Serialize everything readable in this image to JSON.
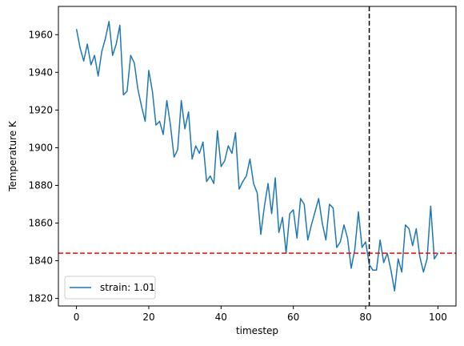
{
  "chart_data": {
    "type": "line",
    "xlabel": "timestep",
    "ylabel": "Temperature K",
    "xlim": [
      -5,
      105
    ],
    "ylim": [
      1816,
      1975
    ],
    "xticks": [
      0,
      20,
      40,
      60,
      80,
      100
    ],
    "yticks": [
      1820,
      1840,
      1860,
      1880,
      1900,
      1920,
      1940,
      1960
    ],
    "grid": false,
    "legend_position": "lower-left",
    "series": [
      {
        "name": "strain: 1.01",
        "color": "#1f77b4",
        "x": [
          0,
          1,
          2,
          3,
          4,
          5,
          6,
          7,
          8,
          9,
          10,
          11,
          12,
          13,
          14,
          15,
          16,
          17,
          18,
          19,
          20,
          21,
          22,
          23,
          24,
          25,
          26,
          27,
          28,
          29,
          30,
          31,
          32,
          33,
          34,
          35,
          36,
          37,
          38,
          39,
          40,
          41,
          42,
          43,
          44,
          45,
          46,
          47,
          48,
          49,
          50,
          51,
          52,
          53,
          54,
          55,
          56,
          57,
          58,
          59,
          60,
          61,
          62,
          63,
          64,
          65,
          66,
          67,
          68,
          69,
          70,
          71,
          72,
          73,
          74,
          75,
          76,
          77,
          78,
          79,
          80,
          81,
          82,
          83,
          84,
          85,
          86,
          87,
          88,
          89,
          90,
          91,
          92,
          93,
          94,
          95,
          96,
          97,
          98,
          99,
          100
        ],
        "y": [
          1963,
          1953,
          1946,
          1955,
          1944,
          1949,
          1938,
          1951,
          1958,
          1967,
          1949,
          1955,
          1965,
          1928,
          1930,
          1949,
          1945,
          1931,
          1922,
          1914,
          1941,
          1930,
          1912,
          1914,
          1907,
          1925,
          1912,
          1895,
          1899,
          1925,
          1910,
          1919,
          1894,
          1901,
          1897,
          1903,
          1882,
          1885,
          1881,
          1909,
          1890,
          1893,
          1901,
          1897,
          1908,
          1878,
          1882,
          1885,
          1894,
          1881,
          1876,
          1854,
          1869,
          1881,
          1865,
          1884,
          1855,
          1863,
          1844,
          1865,
          1867,
          1852,
          1873,
          1870,
          1851,
          1859,
          1866,
          1873,
          1860,
          1851,
          1870,
          1868,
          1847,
          1850,
          1859,
          1852,
          1836,
          1846,
          1866,
          1847,
          1850,
          1838,
          1835,
          1835,
          1851,
          1839,
          1844,
          1835,
          1824,
          1841,
          1834,
          1859,
          1857,
          1848,
          1857,
          1842,
          1834,
          1841,
          1869,
          1841,
          1844
        ]
      }
    ],
    "reference_lines": [
      {
        "orientation": "horizontal",
        "value": 1844,
        "color": "#ff0000",
        "style": "dashed"
      },
      {
        "orientation": "vertical",
        "value": 81,
        "color": "#000000",
        "style": "dashed"
      }
    ]
  }
}
